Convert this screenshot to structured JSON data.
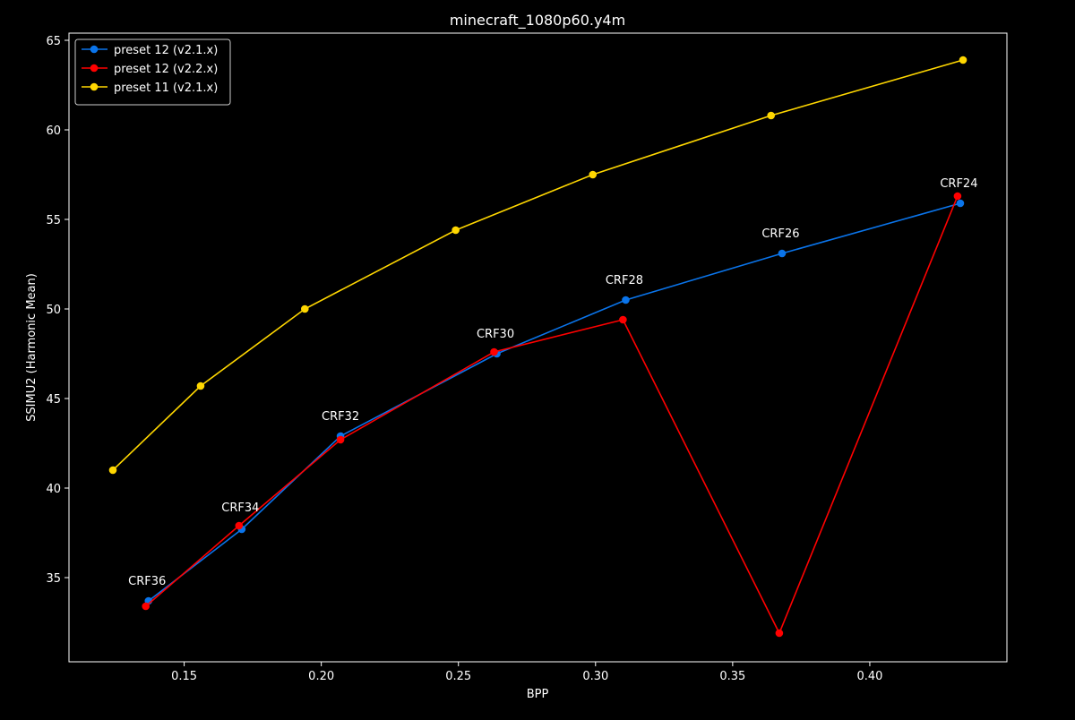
{
  "chart_data": {
    "type": "line",
    "title": "minecraft_1080p60.y4m",
    "xlabel": "BPP",
    "ylabel": "SSIMU2 (Harmonic Mean)",
    "xlim": [
      0.108,
      0.45
    ],
    "ylim": [
      30.3,
      65.4
    ],
    "xticks": [
      0.15,
      0.2,
      0.25,
      0.3,
      0.35,
      0.4
    ],
    "xtick_labels": [
      "0.15",
      "0.20",
      "0.25",
      "0.30",
      "0.35",
      "0.40"
    ],
    "yticks": [
      35,
      40,
      45,
      50,
      55,
      60,
      65
    ],
    "ytick_labels": [
      "35",
      "40",
      "45",
      "50",
      "55",
      "60",
      "65"
    ],
    "grid": false,
    "legend_position": "top-left",
    "background": "#000000",
    "series": [
      {
        "name": "preset 12 (v2.1.x)",
        "color": "#0a74ea",
        "x": [
          0.137,
          0.171,
          0.207,
          0.264,
          0.311,
          0.368,
          0.433
        ],
        "y": [
          33.7,
          37.7,
          42.9,
          47.5,
          50.5,
          53.1,
          55.9
        ]
      },
      {
        "name": "preset 12 (v2.2.x)",
        "color": "#ff0000",
        "x": [
          0.136,
          0.17,
          0.207,
          0.263,
          0.31,
          0.367,
          0.432
        ],
        "y": [
          33.4,
          37.9,
          42.7,
          47.6,
          49.4,
          31.9,
          56.3
        ]
      },
      {
        "name": "preset 11 (v2.1.x)",
        "color": "#ffd700",
        "x": [
          0.124,
          0.156,
          0.194,
          0.249,
          0.299,
          0.364,
          0.434
        ],
        "y": [
          41.0,
          45.7,
          50.0,
          54.4,
          57.5,
          60.8,
          63.9
        ]
      }
    ],
    "annotations": [
      {
        "text": "CRF36",
        "x": 0.1365,
        "y": 34.3
      },
      {
        "text": "CRF34",
        "x": 0.1705,
        "y": 38.4
      },
      {
        "text": "CRF32",
        "x": 0.207,
        "y": 43.5
      },
      {
        "text": "CRF30",
        "x": 0.2635,
        "y": 48.1
      },
      {
        "text": "CRF28",
        "x": 0.3105,
        "y": 51.1
      },
      {
        "text": "CRF26",
        "x": 0.3675,
        "y": 53.7
      },
      {
        "text": "CRF24",
        "x": 0.4325,
        "y": 56.5
      }
    ]
  }
}
